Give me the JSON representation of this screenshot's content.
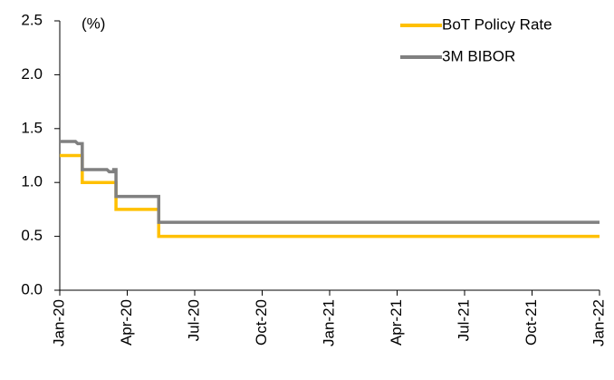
{
  "chart_data": {
    "type": "line",
    "annotation": "(%)",
    "xlim": [
      0,
      24
    ],
    "xticks": [
      {
        "value": 0,
        "label": "Jan-20"
      },
      {
        "value": 3,
        "label": "Apr-20"
      },
      {
        "value": 6,
        "label": "Jul-20"
      },
      {
        "value": 9,
        "label": "Oct-20"
      },
      {
        "value": 12,
        "label": "Jan-21"
      },
      {
        "value": 15,
        "label": "Apr-21"
      },
      {
        "value": 18,
        "label": "Jul-21"
      },
      {
        "value": 21,
        "label": "Oct-21"
      },
      {
        "value": 24,
        "label": "Jan-22"
      }
    ],
    "ylim": [
      0,
      2.5
    ],
    "yticks": [
      {
        "value": 0,
        "label": "0.0"
      },
      {
        "value": 0.5,
        "label": "0.5"
      },
      {
        "value": 1,
        "label": "1.0"
      },
      {
        "value": 1.5,
        "label": "1.5"
      },
      {
        "value": 2,
        "label": "2.0"
      },
      {
        "value": 2.5,
        "label": "2.5"
      }
    ],
    "legend": "upper right",
    "series": [
      {
        "name": "BoT Policy Rate",
        "color": "#FFC000",
        "x": [
          0,
          1.0,
          1.0,
          2.5,
          2.5,
          4.4,
          4.4,
          24
        ],
        "values": [
          1.25,
          1.25,
          1.0,
          1.0,
          0.75,
          0.75,
          0.5,
          0.5
        ]
      },
      {
        "name": "3M BIBOR",
        "color": "#808080",
        "x": [
          0,
          0.7,
          0.8,
          1.0,
          1.0,
          2.1,
          2.2,
          2.4,
          2.4,
          2.5,
          2.5,
          4.4,
          4.4,
          24
        ],
        "values": [
          1.38,
          1.38,
          1.36,
          1.36,
          1.12,
          1.12,
          1.1,
          1.1,
          1.12,
          1.12,
          0.87,
          0.87,
          0.63,
          0.63
        ]
      }
    ]
  }
}
